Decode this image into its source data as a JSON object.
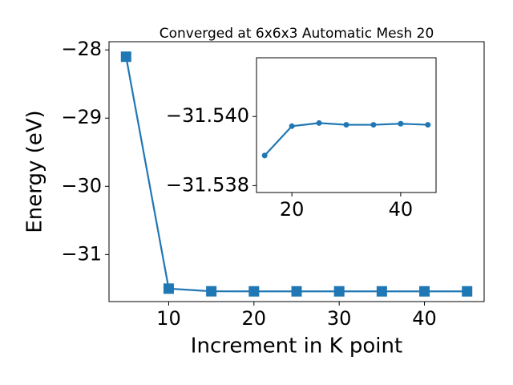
{
  "chart_data": [
    {
      "type": "line",
      "title": "Converged at 6x6x3 Automatic Mesh 20",
      "xlabel": "Increment in K point",
      "ylabel": "Energy (eV)",
      "x": [
        5,
        10,
        15,
        20,
        25,
        30,
        35,
        40,
        45
      ],
      "series": [
        {
          "color": "#1f77b4",
          "marker": "square",
          "values": [
            -28.1,
            -31.5,
            -31.53887,
            -31.53972,
            -31.53981,
            -31.53976,
            -31.53976,
            -31.53979,
            -31.53976
          ]
        }
      ],
      "xlim": [
        3,
        47
      ],
      "ylim": [
        -31.69,
        -27.88
      ],
      "xticks": [
        10,
        20,
        30,
        40
      ],
      "yticks": [
        {
          "value": -31,
          "label": "−31"
        },
        {
          "value": -30,
          "label": "−30"
        },
        {
          "value": -29,
          "label": "−29"
        },
        {
          "value": -28,
          "label": "−28"
        }
      ]
    },
    {
      "type": "line",
      "x": [
        15,
        20,
        25,
        30,
        35,
        40,
        45
      ],
      "series": [
        {
          "color": "#1f77b4",
          "marker": "circle",
          "values": [
            -31.53887,
            -31.53972,
            -31.53981,
            -31.53976,
            -31.53976,
            -31.53979,
            -31.53976
          ]
        }
      ],
      "xlim": [
        13.5,
        46.5
      ],
      "ylim": [
        -31.5378,
        -31.5417
      ],
      "xticks": [
        20,
        40
      ],
      "yticks": [
        {
          "value": -31.538,
          "label": "−31.538"
        },
        {
          "value": -31.54,
          "label": "−31.540"
        }
      ]
    }
  ]
}
